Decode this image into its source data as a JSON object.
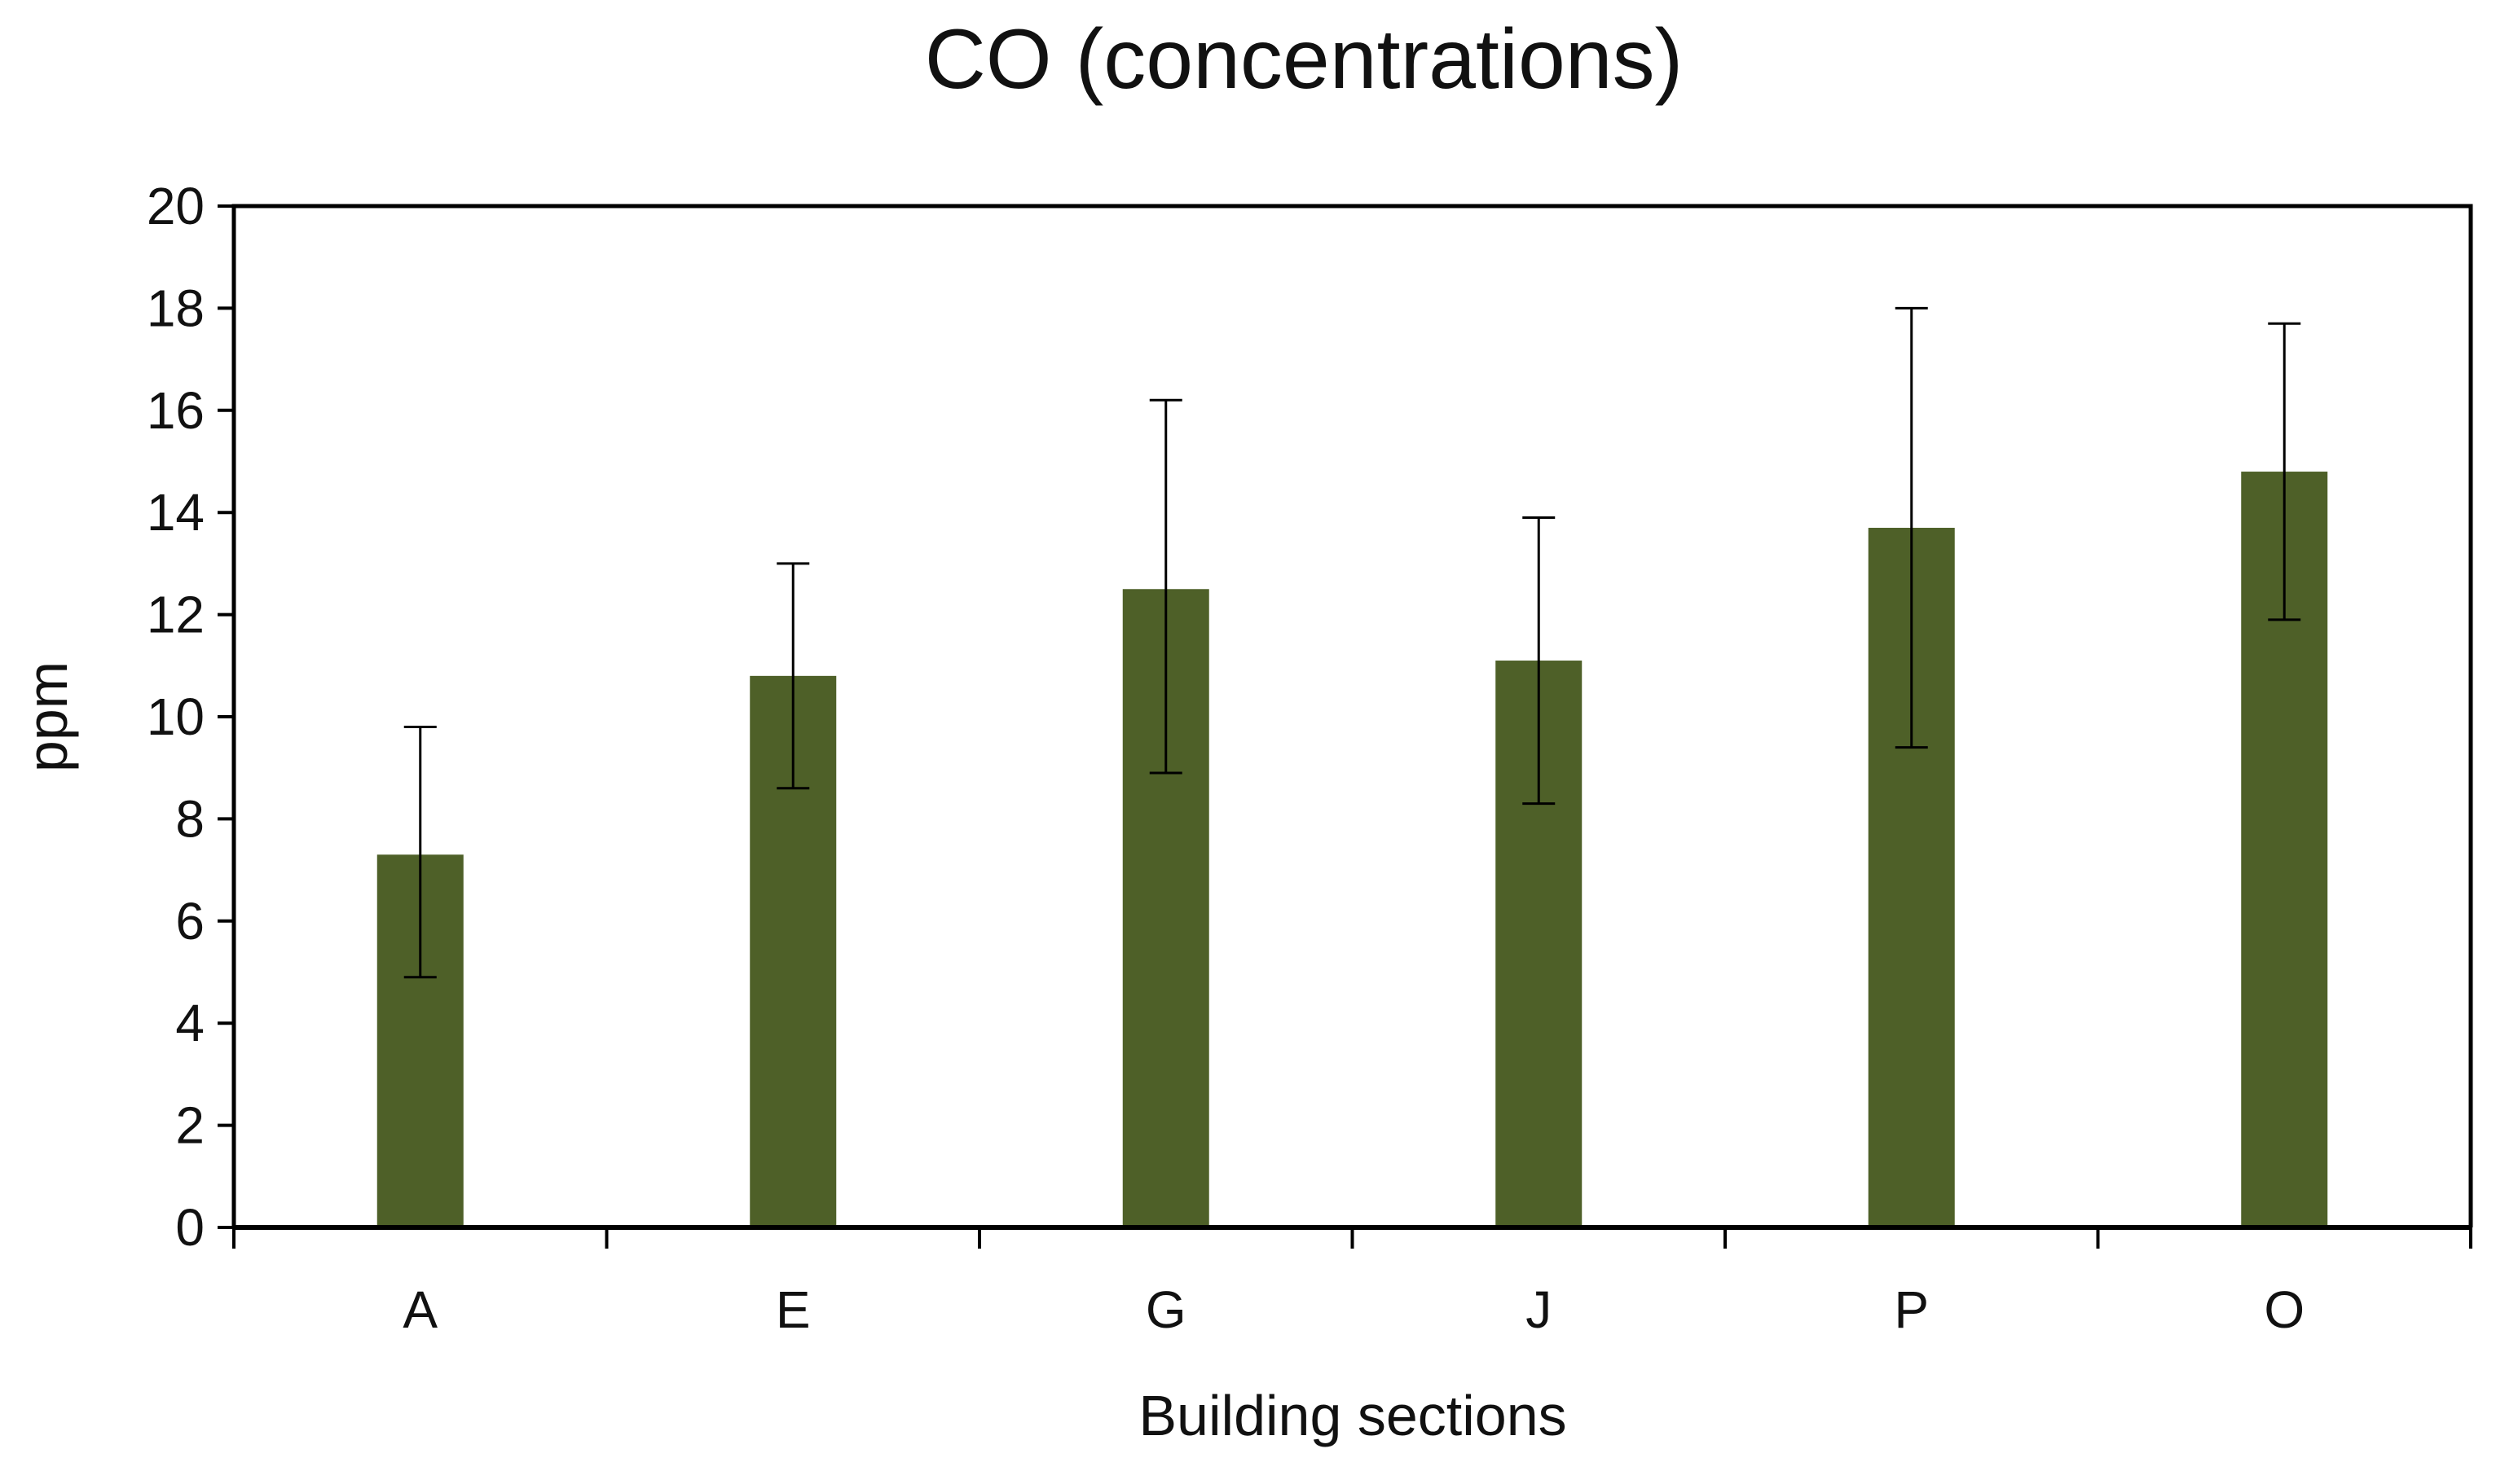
{
  "chart_data": {
    "type": "bar",
    "title": "CO (concentrations)",
    "xlabel": "Building sections",
    "ylabel": "ppm",
    "categories": [
      "A",
      "E",
      "G",
      "J",
      "P",
      "O"
    ],
    "values": [
      7.3,
      10.8,
      12.5,
      11.1,
      13.7,
      14.8
    ],
    "error_upper": [
      9.8,
      13.0,
      16.2,
      13.9,
      18.0,
      17.7
    ],
    "error_lower": [
      4.9,
      8.6,
      8.9,
      8.3,
      9.4,
      11.9
    ],
    "ylim": [
      0,
      20
    ],
    "yticks": [
      "0",
      "2",
      "4",
      "6",
      "8",
      "10",
      "12",
      "14",
      "16",
      "18",
      "20"
    ],
    "grid": false,
    "legend": "none",
    "bar_color": "#4e6028",
    "axis_color": "#000000"
  }
}
